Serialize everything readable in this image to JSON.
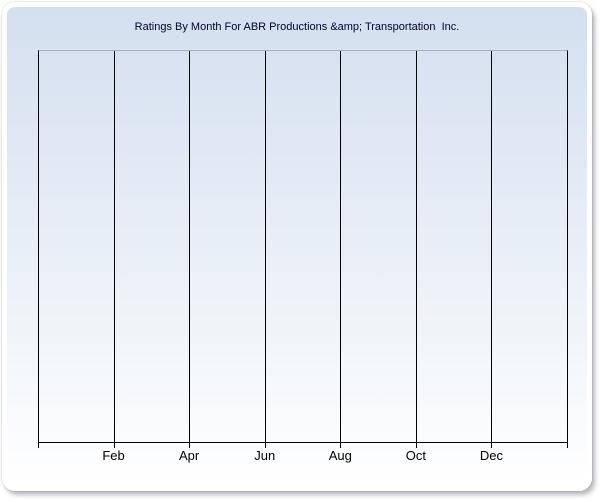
{
  "page": {
    "background_color": "#ffffff"
  },
  "panel": {
    "border_color": "#ffffff",
    "gradient_top_color": "#d4dfef",
    "gradient_bottom_color": "#ffffff",
    "shadow_color": "#9a9aa0"
  },
  "chart_data": {
    "type": "line",
    "title": "Ratings By Month For ABR Productions &amp; Transportation  Inc.",
    "title_color": "#000030",
    "xlabel": "",
    "ylabel": "",
    "x_tick_labels": [
      "Feb",
      "Apr",
      "Jun",
      "Aug",
      "Oct",
      "Dec"
    ],
    "y_tick_labels": [],
    "series": [],
    "grid": "vertical-only",
    "grid_color": "#000000",
    "axis_color": "#000000",
    "plot_top_border_color": "#a8b2c6",
    "legend": "none",
    "plot_note": "plot area is empty - no data series rendered"
  }
}
